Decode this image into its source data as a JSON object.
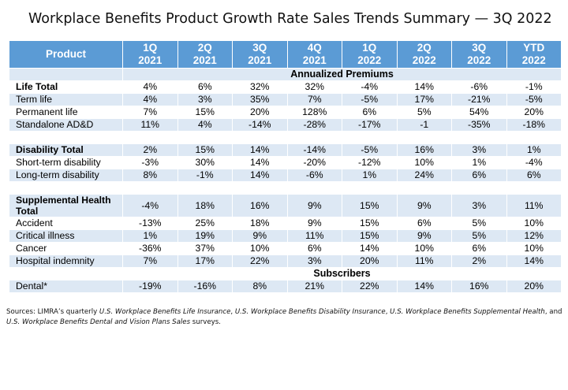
{
  "title": "Workplace Benefits Product Growth Rate Sales Trends Summary — 3Q 2022",
  "header": {
    "product_label": "Product",
    "columns": [
      {
        "q": "1Q",
        "y": "2021"
      },
      {
        "q": "2Q",
        "y": "2021"
      },
      {
        "q": "3Q",
        "y": "2021"
      },
      {
        "q": "4Q",
        "y": "2021"
      },
      {
        "q": "1Q",
        "y": "2022"
      },
      {
        "q": "2Q",
        "y": "2022"
      },
      {
        "q": "3Q",
        "y": "2022"
      },
      {
        "q": "YTD",
        "y": "2022"
      }
    ]
  },
  "sections": {
    "annualized": "Annualized Premiums",
    "subscribers": "Subscribers"
  },
  "rows": {
    "life_total": {
      "label": "Life Total",
      "values": [
        "4%",
        "6%",
        "32%",
        "32%",
        "-4%",
        "14%",
        "-6%",
        "-1%"
      ]
    },
    "term_life": {
      "label": "Term life",
      "values": [
        "4%",
        "3%",
        "35%",
        "7%",
        "-5%",
        "17%",
        "-21%",
        "-5%"
      ]
    },
    "permanent_life": {
      "label": "Permanent life",
      "values": [
        "7%",
        "15%",
        "20%",
        "128%",
        "6%",
        "5%",
        "54%",
        "20%"
      ]
    },
    "standalone_add": {
      "label": "Standalone AD&D",
      "values": [
        "11%",
        "4%",
        "-14%",
        "-28%",
        "-17%",
        "-1",
        "-35%",
        "-18%"
      ]
    },
    "disability_total": {
      "label": "Disability Total",
      "values": [
        "2%",
        "15%",
        "14%",
        "-14%",
        "-5%",
        "16%",
        "3%",
        "1%"
      ]
    },
    "short_term": {
      "label": "Short-term disability",
      "values": [
        "-3%",
        "30%",
        "14%",
        "-20%",
        "-12%",
        "10%",
        "1%",
        "-4%"
      ]
    },
    "long_term": {
      "label": "Long-term disability",
      "values": [
        "8%",
        "-1%",
        "14%",
        "-6%",
        "1%",
        "24%",
        "6%",
        "6%"
      ]
    },
    "supp_total": {
      "label": "Supplemental Health Total",
      "values": [
        "-4%",
        "18%",
        "16%",
        "9%",
        "15%",
        "9%",
        "3%",
        "11%"
      ]
    },
    "accident": {
      "label": "Accident",
      "values": [
        "-13%",
        "25%",
        "18%",
        "9%",
        "15%",
        "6%",
        "5%",
        "10%"
      ]
    },
    "critical_illness": {
      "label": "Critical illness",
      "values": [
        "1%",
        "19%",
        "9%",
        "11%",
        "15%",
        "9%",
        "5%",
        "12%"
      ]
    },
    "cancer": {
      "label": "Cancer",
      "values": [
        "-36%",
        "37%",
        "10%",
        "6%",
        "14%",
        "10%",
        "6%",
        "10%"
      ]
    },
    "hospital_indemnity": {
      "label": "Hospital indemnity",
      "values": [
        "7%",
        "17%",
        "22%",
        "3%",
        "20%",
        "11%",
        "2%",
        "14%"
      ]
    },
    "dental": {
      "label": "Dental*",
      "values": [
        "-19%",
        "-16%",
        "8%",
        "21%",
        "22%",
        "14%",
        "16%",
        "20%"
      ]
    }
  },
  "footnote": {
    "prefix": "Sources: LIMRA’s quarterly ",
    "s1": "U.S. Workplace Benefits Life Insurance",
    "sep1": ", ",
    "s2": "U.S. Workplace Benefits Disability Insurance",
    "sep2": ", ",
    "s3": "U.S. Workplace Benefits Supplemental Health",
    "sep3": ", and ",
    "s4": "U.S. Workplace Benefits Dental and Vision Plans Sales",
    "suffix": " surveys."
  }
}
